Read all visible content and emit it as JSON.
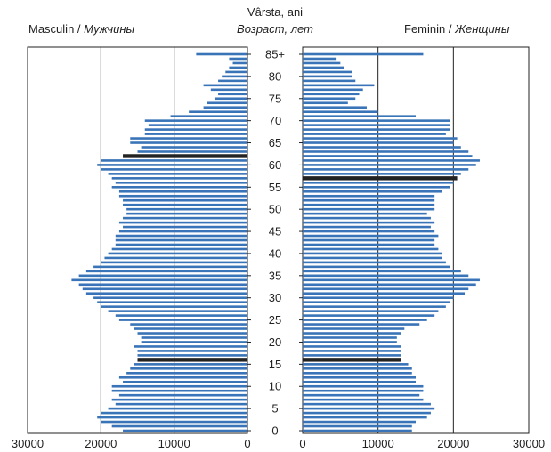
{
  "chart_data": {
    "type": "bar",
    "orientation": "horizontal-pyramid",
    "header": {
      "left_label": "Masculin / ",
      "left_label_italic": "Мужчины",
      "center_line1": "Vârsta, ani",
      "center_line2": "Возраст, лет",
      "right_label": "Feminin / ",
      "right_label_italic": "Женщины"
    },
    "age_ticks": [
      "0",
      "5",
      "10",
      "15",
      "20",
      "25",
      "30",
      "35",
      "40",
      "45",
      "50",
      "55",
      "60",
      "65",
      "70",
      "75",
      "80",
      "85+"
    ],
    "x_ticks_left": [
      "30000",
      "20000",
      "10000",
      "0"
    ],
    "x_ticks_right": [
      "0",
      "10000",
      "20000",
      "30000"
    ],
    "xlim": [
      0,
      30000
    ],
    "grid": "vertical lines at 0, 10000, 20000",
    "colors": {
      "bar": "#3a74b8",
      "highlight": "#222222",
      "grid": "#222222"
    },
    "highlight_ages": {
      "male": [
        16,
        62
      ],
      "female": [
        16,
        57
      ]
    },
    "series": [
      {
        "name": "Masculin",
        "ages": [
          0,
          1,
          2,
          3,
          4,
          5,
          6,
          7,
          8,
          9,
          10,
          11,
          12,
          13,
          14,
          15,
          16,
          17,
          18,
          19,
          20,
          21,
          22,
          23,
          24,
          25,
          26,
          27,
          28,
          29,
          30,
          31,
          32,
          33,
          34,
          35,
          36,
          37,
          38,
          39,
          40,
          41,
          42,
          43,
          44,
          45,
          46,
          47,
          48,
          49,
          50,
          51,
          52,
          53,
          54,
          55,
          56,
          57,
          58,
          59,
          60,
          61,
          62,
          63,
          64,
          65,
          66,
          67,
          68,
          69,
          70,
          71,
          72,
          73,
          74,
          75,
          76,
          77,
          78,
          79,
          80,
          81,
          82,
          83,
          84,
          85
        ],
        "values": [
          17000,
          18500,
          20000,
          20500,
          20000,
          19000,
          18000,
          18500,
          17500,
          18500,
          18500,
          17000,
          17500,
          16500,
          16000,
          15500,
          15000,
          15000,
          15000,
          15500,
          14500,
          14500,
          15000,
          15500,
          16000,
          17500,
          18000,
          19000,
          20000,
          20500,
          21000,
          22000,
          22500,
          23000,
          24000,
          23000,
          22000,
          21000,
          20000,
          19500,
          19000,
          18500,
          18000,
          18000,
          18000,
          17500,
          17000,
          17500,
          17000,
          16500,
          16500,
          17000,
          17000,
          17500,
          17500,
          18500,
          18000,
          18500,
          19000,
          20000,
          20500,
          20000,
          17000,
          15000,
          14500,
          16000,
          16000,
          14000,
          14000,
          13500,
          14000,
          10500,
          8000,
          6000,
          5500,
          4500,
          4000,
          5000,
          6000,
          4000,
          3500,
          3000,
          2500,
          2000,
          2500,
          7000
        ]
      },
      {
        "name": "Feminin",
        "ages": [
          0,
          1,
          2,
          3,
          4,
          5,
          6,
          7,
          8,
          9,
          10,
          11,
          12,
          13,
          14,
          15,
          16,
          17,
          18,
          19,
          20,
          21,
          22,
          23,
          24,
          25,
          26,
          27,
          28,
          29,
          30,
          31,
          32,
          33,
          34,
          35,
          36,
          37,
          38,
          39,
          40,
          41,
          42,
          43,
          44,
          45,
          46,
          47,
          48,
          49,
          50,
          51,
          52,
          53,
          54,
          55,
          56,
          57,
          58,
          59,
          60,
          61,
          62,
          63,
          64,
          65,
          66,
          67,
          68,
          69,
          70,
          71,
          72,
          73,
          74,
          75,
          76,
          77,
          78,
          79,
          80,
          81,
          82,
          83,
          84,
          85
        ],
        "values": [
          14500,
          14500,
          15000,
          16500,
          17000,
          17500,
          17000,
          16000,
          15500,
          16000,
          16000,
          15000,
          15000,
          14500,
          14500,
          14000,
          13000,
          13000,
          13000,
          13000,
          12500,
          12500,
          13000,
          13500,
          15500,
          16500,
          17500,
          18000,
          19000,
          19500,
          20000,
          21500,
          22000,
          23000,
          23500,
          22000,
          21000,
          19500,
          19000,
          18500,
          18500,
          18000,
          17500,
          17500,
          18000,
          17500,
          17000,
          17500,
          17000,
          16500,
          17500,
          17500,
          17500,
          17500,
          18500,
          19500,
          20000,
          20500,
          21000,
          22000,
          23000,
          23500,
          22500,
          22000,
          21000,
          20000,
          20500,
          19000,
          19500,
          19500,
          19500,
          15000,
          10000,
          8500,
          6000,
          7000,
          7500,
          8000,
          9500,
          7000,
          6500,
          6500,
          5500,
          5000,
          4500,
          16000
        ]
      }
    ]
  }
}
